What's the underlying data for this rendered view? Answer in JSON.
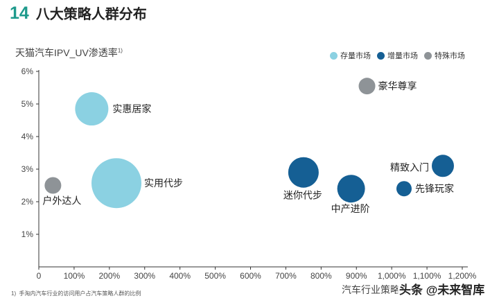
{
  "header": {
    "number": "14",
    "title": "八大策略人群分布"
  },
  "y_axis_title": {
    "text": "天猫汽车IPV_UV渗透率",
    "note": "1)"
  },
  "x_axis_title": "汽车行业策略",
  "footnote": {
    "mark": "1)",
    "text": "手淘内汽车行业的访问用户占汽车策略人群的比例"
  },
  "watermark": "头条 @未来智库",
  "legend": [
    {
      "label": "存量市场",
      "color": "#8bd1e2"
    },
    {
      "label": "增量市场",
      "color": "#155f94"
    },
    {
      "label": "特殊市场",
      "color": "#8e9397"
    }
  ],
  "chart_data": {
    "type": "scatter",
    "xlim": [
      0,
      1200
    ],
    "ylim": [
      0,
      6
    ],
    "x_ticks": [
      "0",
      "100%",
      "200%",
      "300%",
      "400%",
      "500%",
      "600%",
      "700%",
      "800%",
      "900%",
      "1,000%",
      "1,100%",
      "1,200%"
    ],
    "y_ticks": [
      "1%",
      "2%",
      "3%",
      "4%",
      "5%",
      "6%"
    ],
    "grid": false,
    "legend_position": "top-right",
    "series": [
      {
        "name": "存量市场",
        "color": "#8bd1e2",
        "points": [
          {
            "label": "实惠居家",
            "x": 150,
            "y": 4.85,
            "size": 24
          },
          {
            "label": "实用代步",
            "x": 220,
            "y": 2.57,
            "size": 36
          }
        ]
      },
      {
        "name": "增量市场",
        "color": "#155f94",
        "points": [
          {
            "label": "迷你代步",
            "x": 750,
            "y": 2.9,
            "size": 22
          },
          {
            "label": "中产进阶",
            "x": 885,
            "y": 2.4,
            "size": 20
          },
          {
            "label": "精致入门",
            "x": 1145,
            "y": 3.1,
            "size": 16
          },
          {
            "label": "先锋玩家",
            "x": 1035,
            "y": 2.4,
            "size": 11
          }
        ]
      },
      {
        "name": "特殊市场",
        "color": "#8e9397",
        "points": [
          {
            "label": "豪华尊享",
            "x": 930,
            "y": 5.55,
            "size": 12
          },
          {
            "label": "户外达人",
            "x": 40,
            "y": 2.5,
            "size": 12
          }
        ]
      }
    ]
  }
}
